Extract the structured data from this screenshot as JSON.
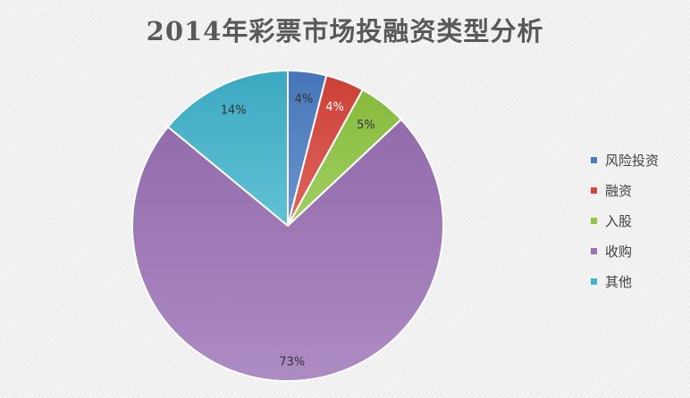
{
  "chart_data": {
    "type": "pie",
    "title": "2014年彩票市场投融资类型分析",
    "slices": [
      {
        "name": "风险投资",
        "value": 4,
        "label": "4%",
        "color": "#4a7ec4",
        "label_color": "#333333"
      },
      {
        "name": "融资",
        "value": 4,
        "label": "4%",
        "color": "#d9443b",
        "label_color": "#ffffff"
      },
      {
        "name": "入股",
        "value": 5,
        "label": "5%",
        "color": "#8fc641",
        "label_color": "#333333"
      },
      {
        "name": "收购",
        "value": 73,
        "label": "73%",
        "color": "#9b72b6",
        "label_color": "#333333"
      },
      {
        "name": "其他",
        "value": 14,
        "label": "14%",
        "color": "#3fb4cd",
        "label_color": "#333333"
      }
    ],
    "legend_position": "right"
  }
}
